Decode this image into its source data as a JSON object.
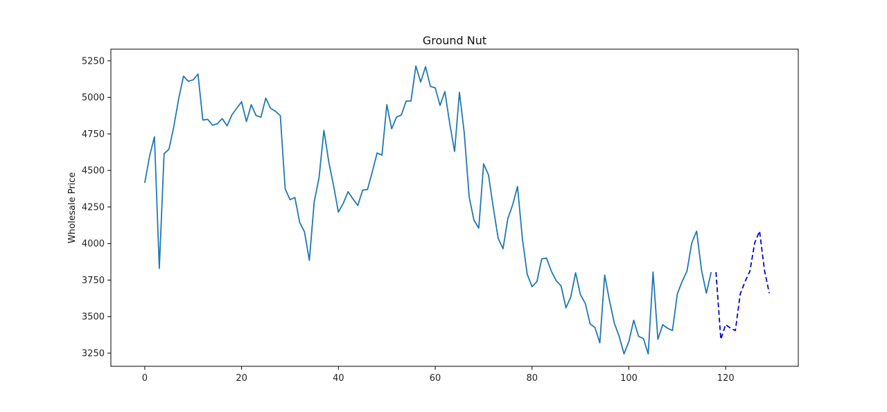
{
  "chart_data": {
    "type": "line",
    "title": "Ground Nut",
    "xlabel": "",
    "ylabel": "Wholesale Price",
    "xlim": [
      -7,
      135
    ],
    "ylim": [
      3160,
      5330
    ],
    "x_ticks": [
      0,
      20,
      40,
      60,
      80,
      100,
      120
    ],
    "y_ticks": [
      3250,
      3500,
      3750,
      4000,
      4250,
      4500,
      4750,
      5000,
      5250
    ],
    "grid": false,
    "legend": "none",
    "series": [
      {
        "style": "solid",
        "color": "#1f77b4",
        "x_start": 0,
        "values": [
          4415,
          4600,
          4730,
          3830,
          4615,
          4645,
          4800,
          4990,
          5145,
          5110,
          5120,
          5160,
          4845,
          4850,
          4810,
          4820,
          4855,
          4805,
          4880,
          4925,
          4970,
          4835,
          4950,
          4875,
          4865,
          4995,
          4925,
          4905,
          4875,
          4375,
          4300,
          4315,
          4145,
          4080,
          3885,
          4285,
          4450,
          4775,
          4560,
          4395,
          4215,
          4275,
          4355,
          4305,
          4260,
          4365,
          4370,
          4490,
          4620,
          4605,
          4950,
          4785,
          4865,
          4880,
          4975,
          4975,
          5215,
          5105,
          5210,
          5075,
          5065,
          4945,
          5040,
          4820,
          4630,
          5035,
          4755,
          4320,
          4160,
          4105,
          4545,
          4470,
          4245,
          4035,
          3965,
          4170,
          4265,
          4390,
          4035,
          3790,
          3705,
          3740,
          3895,
          3900,
          3810,
          3745,
          3710,
          3560,
          3635,
          3800,
          3650,
          3590,
          3450,
          3425,
          3320,
          3785,
          3610,
          3455,
          3365,
          3245,
          3330,
          3475,
          3365,
          3350,
          3245,
          3805,
          3345,
          3445,
          3420,
          3405,
          3655,
          3740,
          3810,
          4005,
          4085,
          3820,
          3660,
          3805
        ]
      },
      {
        "style": "dashed",
        "color": "#0000cc",
        "x_start": 118,
        "values": [
          3805,
          3345,
          3445,
          3420,
          3405,
          3655,
          3740,
          3810,
          4005,
          4085,
          3820,
          3660
        ]
      }
    ]
  }
}
